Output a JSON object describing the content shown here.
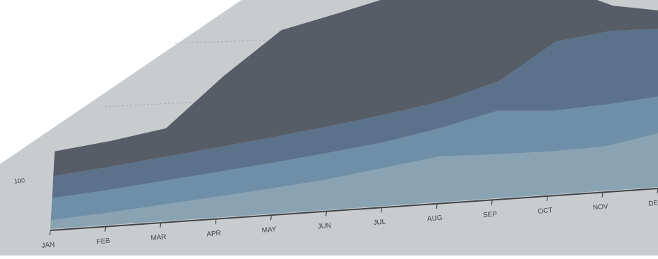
{
  "chart_data": {
    "type": "area",
    "stacked": true,
    "perspective": "3d-tilted",
    "categories": [
      "JAN",
      "FEB",
      "MAR",
      "APR",
      "MAY",
      "JUN",
      "JUL",
      "AUG",
      "SEP",
      "OCT",
      "NOV",
      "DEC"
    ],
    "y_tick_labels": [
      "100"
    ],
    "gridlines": true,
    "legend": "none",
    "series": [
      {
        "color": "#8aa3b2",
        "values": [
          30,
          40,
          52,
          63,
          74,
          86,
          104,
          120,
          112,
          106,
          106,
          126
        ]
      },
      {
        "color": "#6f8fa8",
        "values": [
          75,
          75,
          75,
          75,
          75,
          75,
          70,
          75,
          110,
          100,
          100,
          85
        ]
      },
      {
        "color": "#5c728a",
        "values": [
          75,
          75,
          75,
          75,
          75,
          75,
          75,
          70,
          75,
          170,
          175,
          155
        ]
      },
      {
        "color": "#575d67",
        "values": [
          85,
          85,
          90,
          215,
          310,
          315,
          320,
          395,
          445,
          135,
          60,
          40
        ]
      }
    ],
    "background_color": "#c8ccce",
    "ink_color": "#3f4347"
  }
}
